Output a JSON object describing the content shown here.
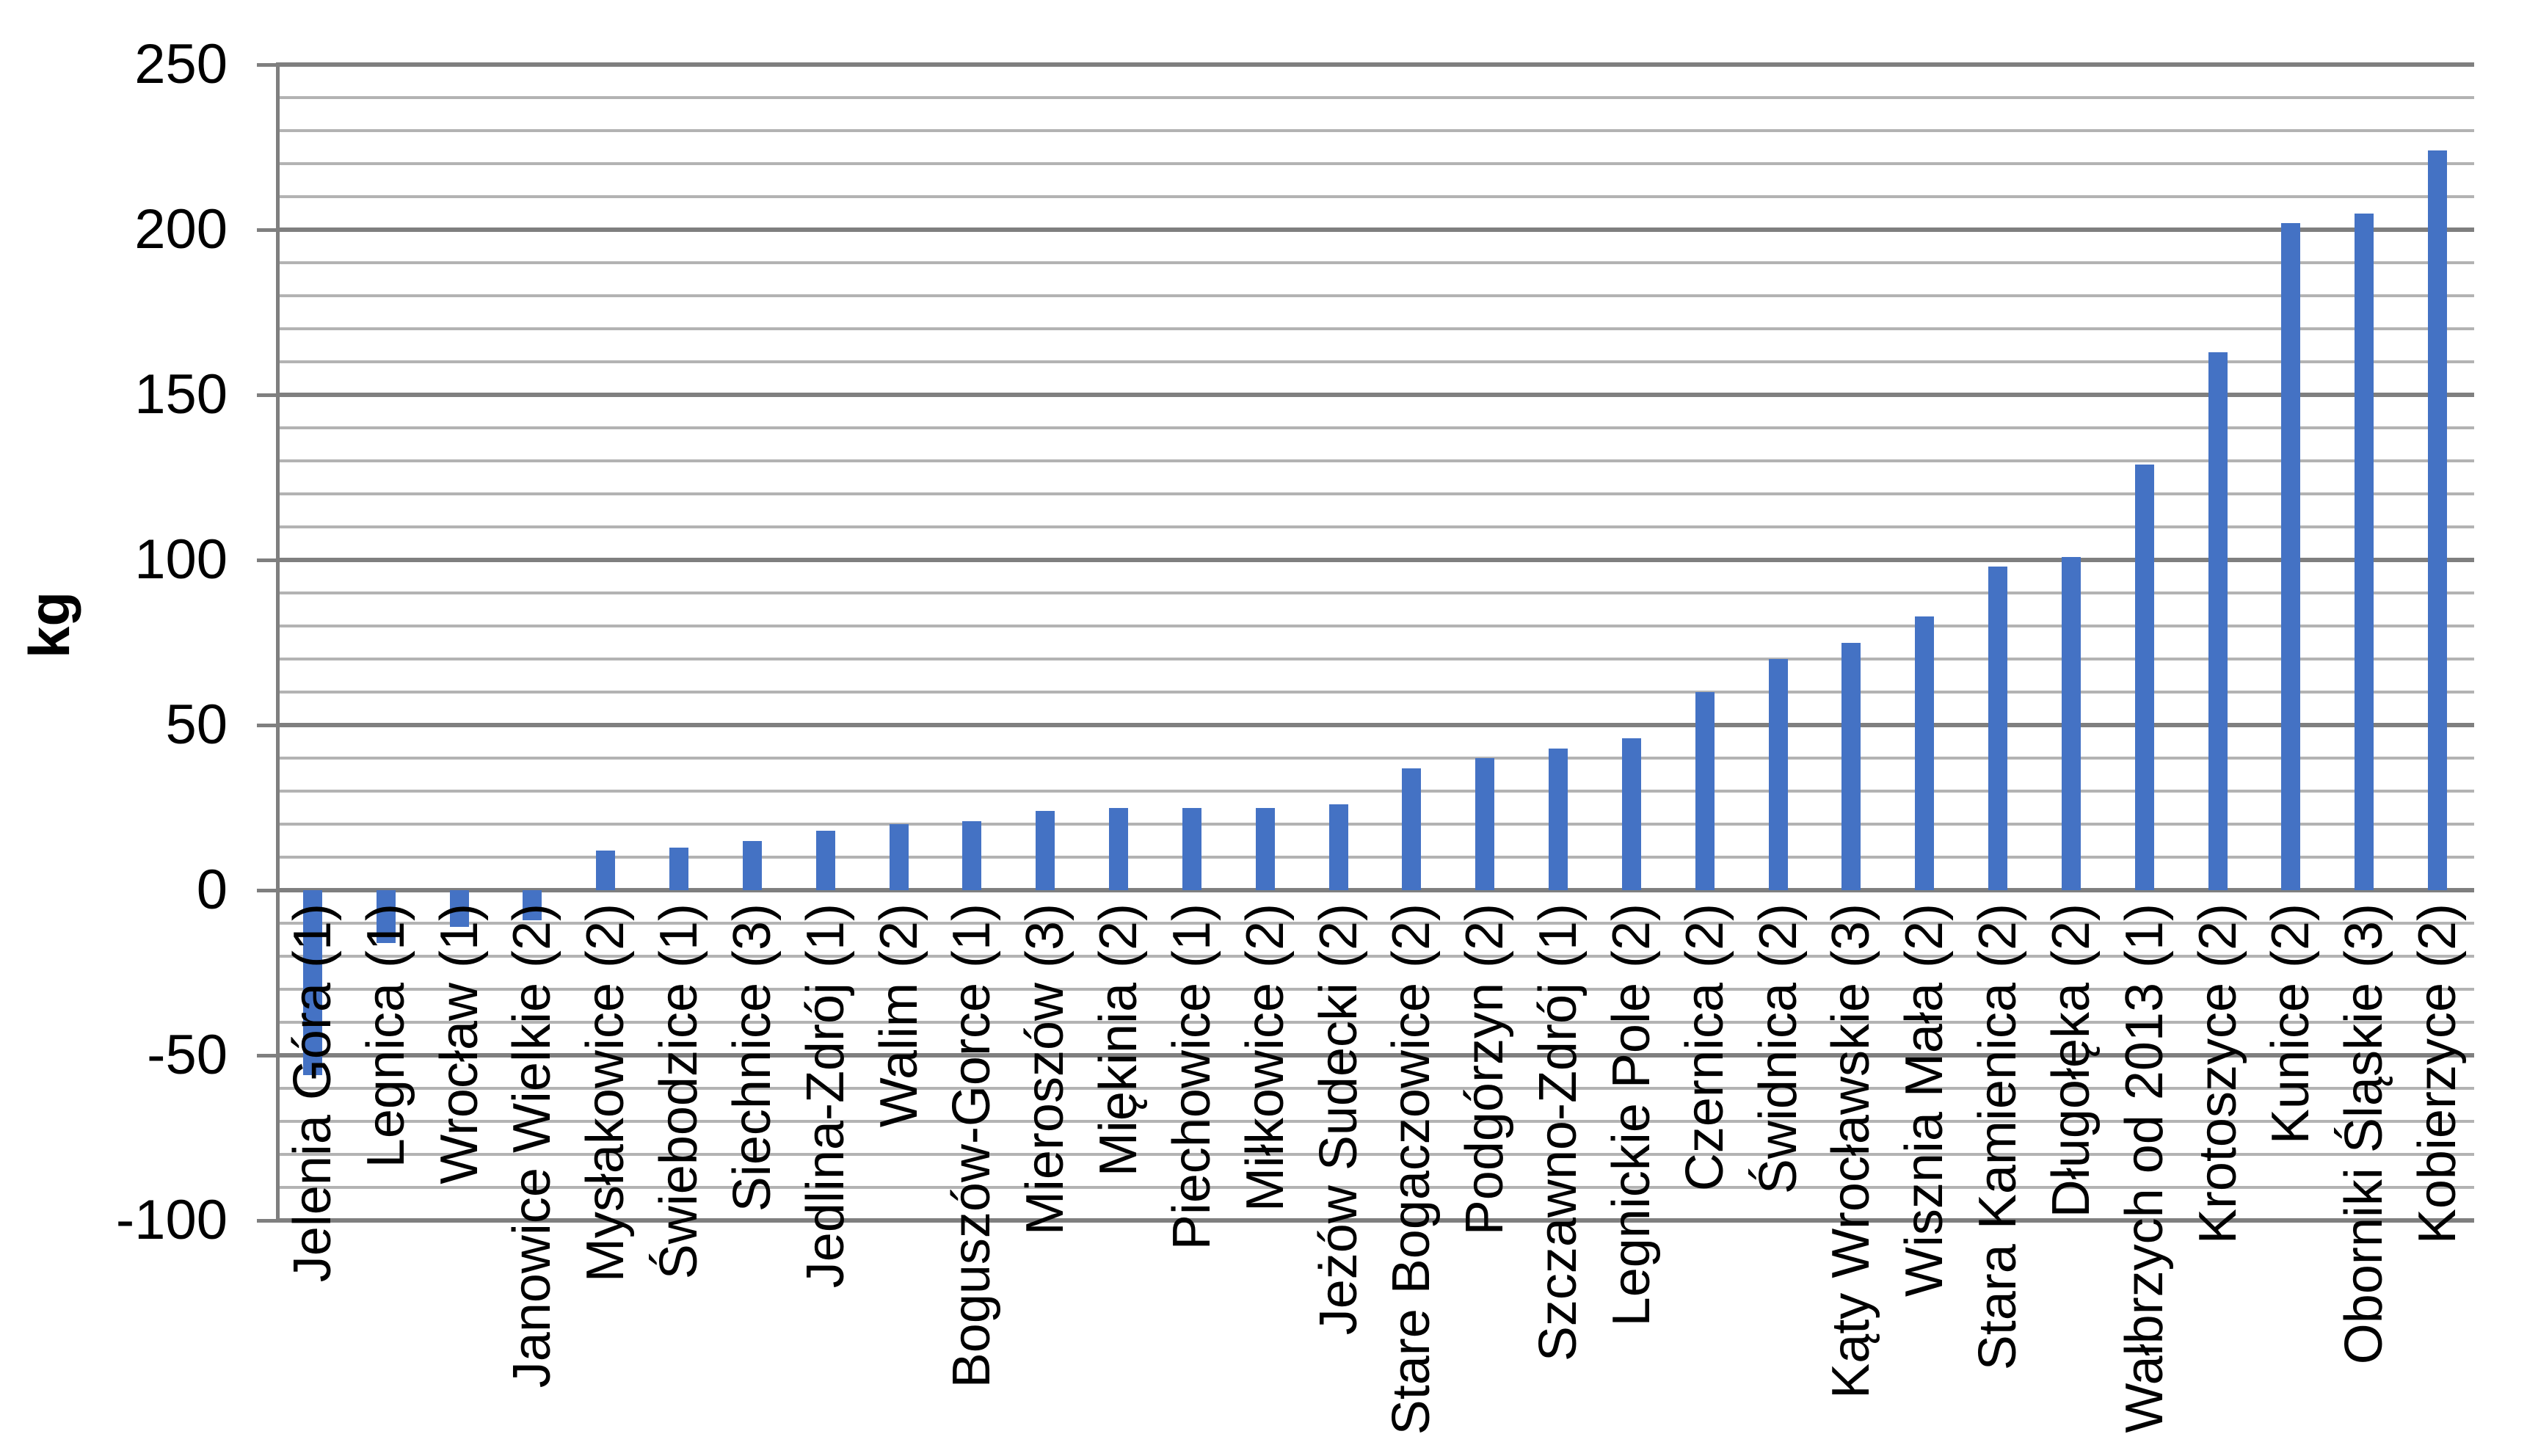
{
  "chart_data": {
    "type": "bar",
    "title": "",
    "xlabel": "",
    "ylabel": "kg",
    "categories": [
      "Jelenia Góra (1)",
      "Legnica (1)",
      "Wrocław (1)",
      "Janowice Wielkie (2)",
      "Mysłakowice (2)",
      "Świebodzice (1)",
      "Siechnice (3)",
      "Jedlina-Zdrój (1)",
      "Walim (2)",
      "Boguszów-Gorce (1)",
      "Mieroszów (3)",
      "Miękinia (2)",
      "Piechowice (1)",
      "Miłkowice (2)",
      "Jeżów Sudecki (2)",
      "Stare Bogaczowice (2)",
      "Podgórzyn (2)",
      "Szczawno-Zdrój (1)",
      "Legnickie Pole (2)",
      "Czernica (2)",
      "Świdnica (2)",
      "Kąty Wrocławskie (3)",
      "Wisznia Mała (2)",
      "Stara Kamienica (2)",
      "Długołęka (2)",
      "Wałbrzych od 2013 (1)",
      "Krotoszyce (2)",
      "Kunice (2)",
      "Oborniki Śląskie (3)",
      "Kobierzyce (2)"
    ],
    "values": [
      -56,
      -16,
      -11,
      -9,
      12,
      13,
      15,
      18,
      20,
      21,
      24,
      25,
      25,
      25,
      26,
      37,
      40,
      43,
      46,
      60,
      70,
      75,
      83,
      98,
      101,
      129,
      163,
      202,
      205,
      224
    ],
    "ylim": [
      -100,
      250
    ],
    "ytick_step": 50,
    "minor_grid_step": 10,
    "ytick_labels": [
      "250",
      "200",
      "150",
      "100",
      "50",
      "0",
      "-50",
      "-100"
    ],
    "legend_position": "none",
    "grid": "horizontal major and minor, minor every 10, major every 50",
    "bar_color": "#4472C4",
    "major_grid_color": "#7f7f7f",
    "minor_grid_color": "#b3b3b3",
    "axis_color": "#7f7f7f",
    "x_label_rotation_deg": -90
  }
}
